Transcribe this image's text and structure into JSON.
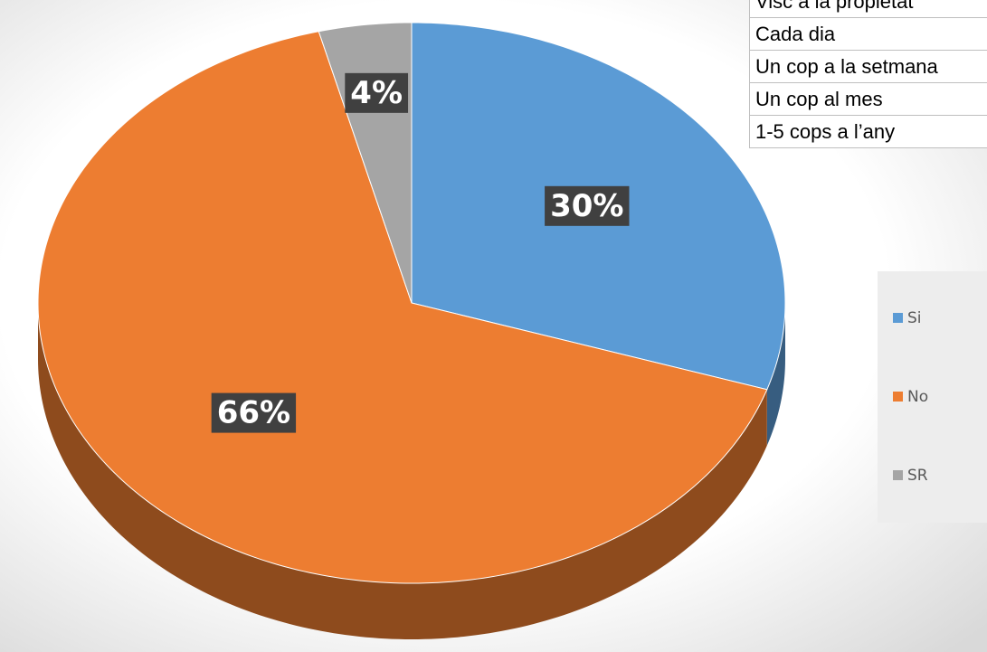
{
  "chart_data": {
    "type": "pie",
    "categories": [
      "Si",
      "No",
      "SR"
    ],
    "values": [
      30,
      66,
      4
    ],
    "value_labels": [
      "30%",
      "66%",
      "4%"
    ],
    "colors": [
      "#5b9bd5",
      "#ed7d31",
      "#a5a5a5"
    ],
    "legend": "right"
  },
  "table": {
    "rows": [
      "Visc a la propietat",
      "Cada dia",
      "Un cop a la setmana",
      "Un cop al mes",
      "1-5 cops a l’any"
    ]
  }
}
